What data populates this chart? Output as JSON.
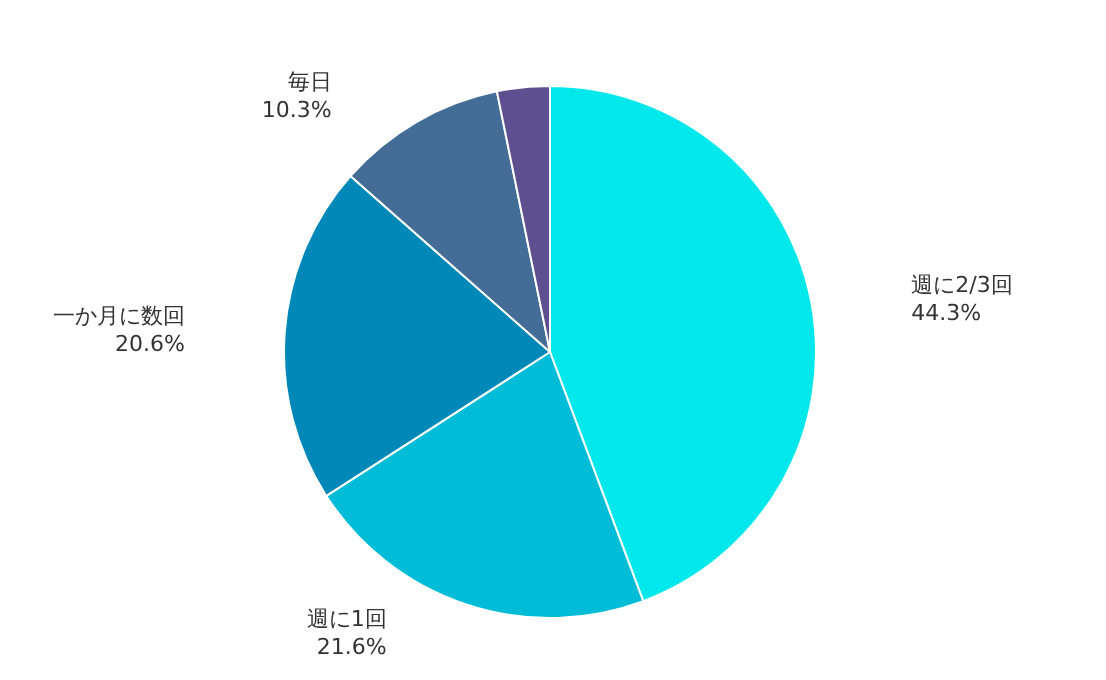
{
  "chart_data": {
    "type": "pie",
    "categories": [
      "週に2/3回",
      "週に1回",
      "一か月に数回",
      "毎日",
      null
    ],
    "values": [
      44.3,
      21.6,
      20.6,
      10.3,
      3.2
    ],
    "value_labels": [
      "44.3%",
      "21.6%",
      "20.6%",
      "10.3%",
      null
    ],
    "colors": [
      "#00e8ec",
      "#00bcd6",
      "#0088b8",
      "#436d96",
      "#5e5090"
    ],
    "legend": false
  }
}
